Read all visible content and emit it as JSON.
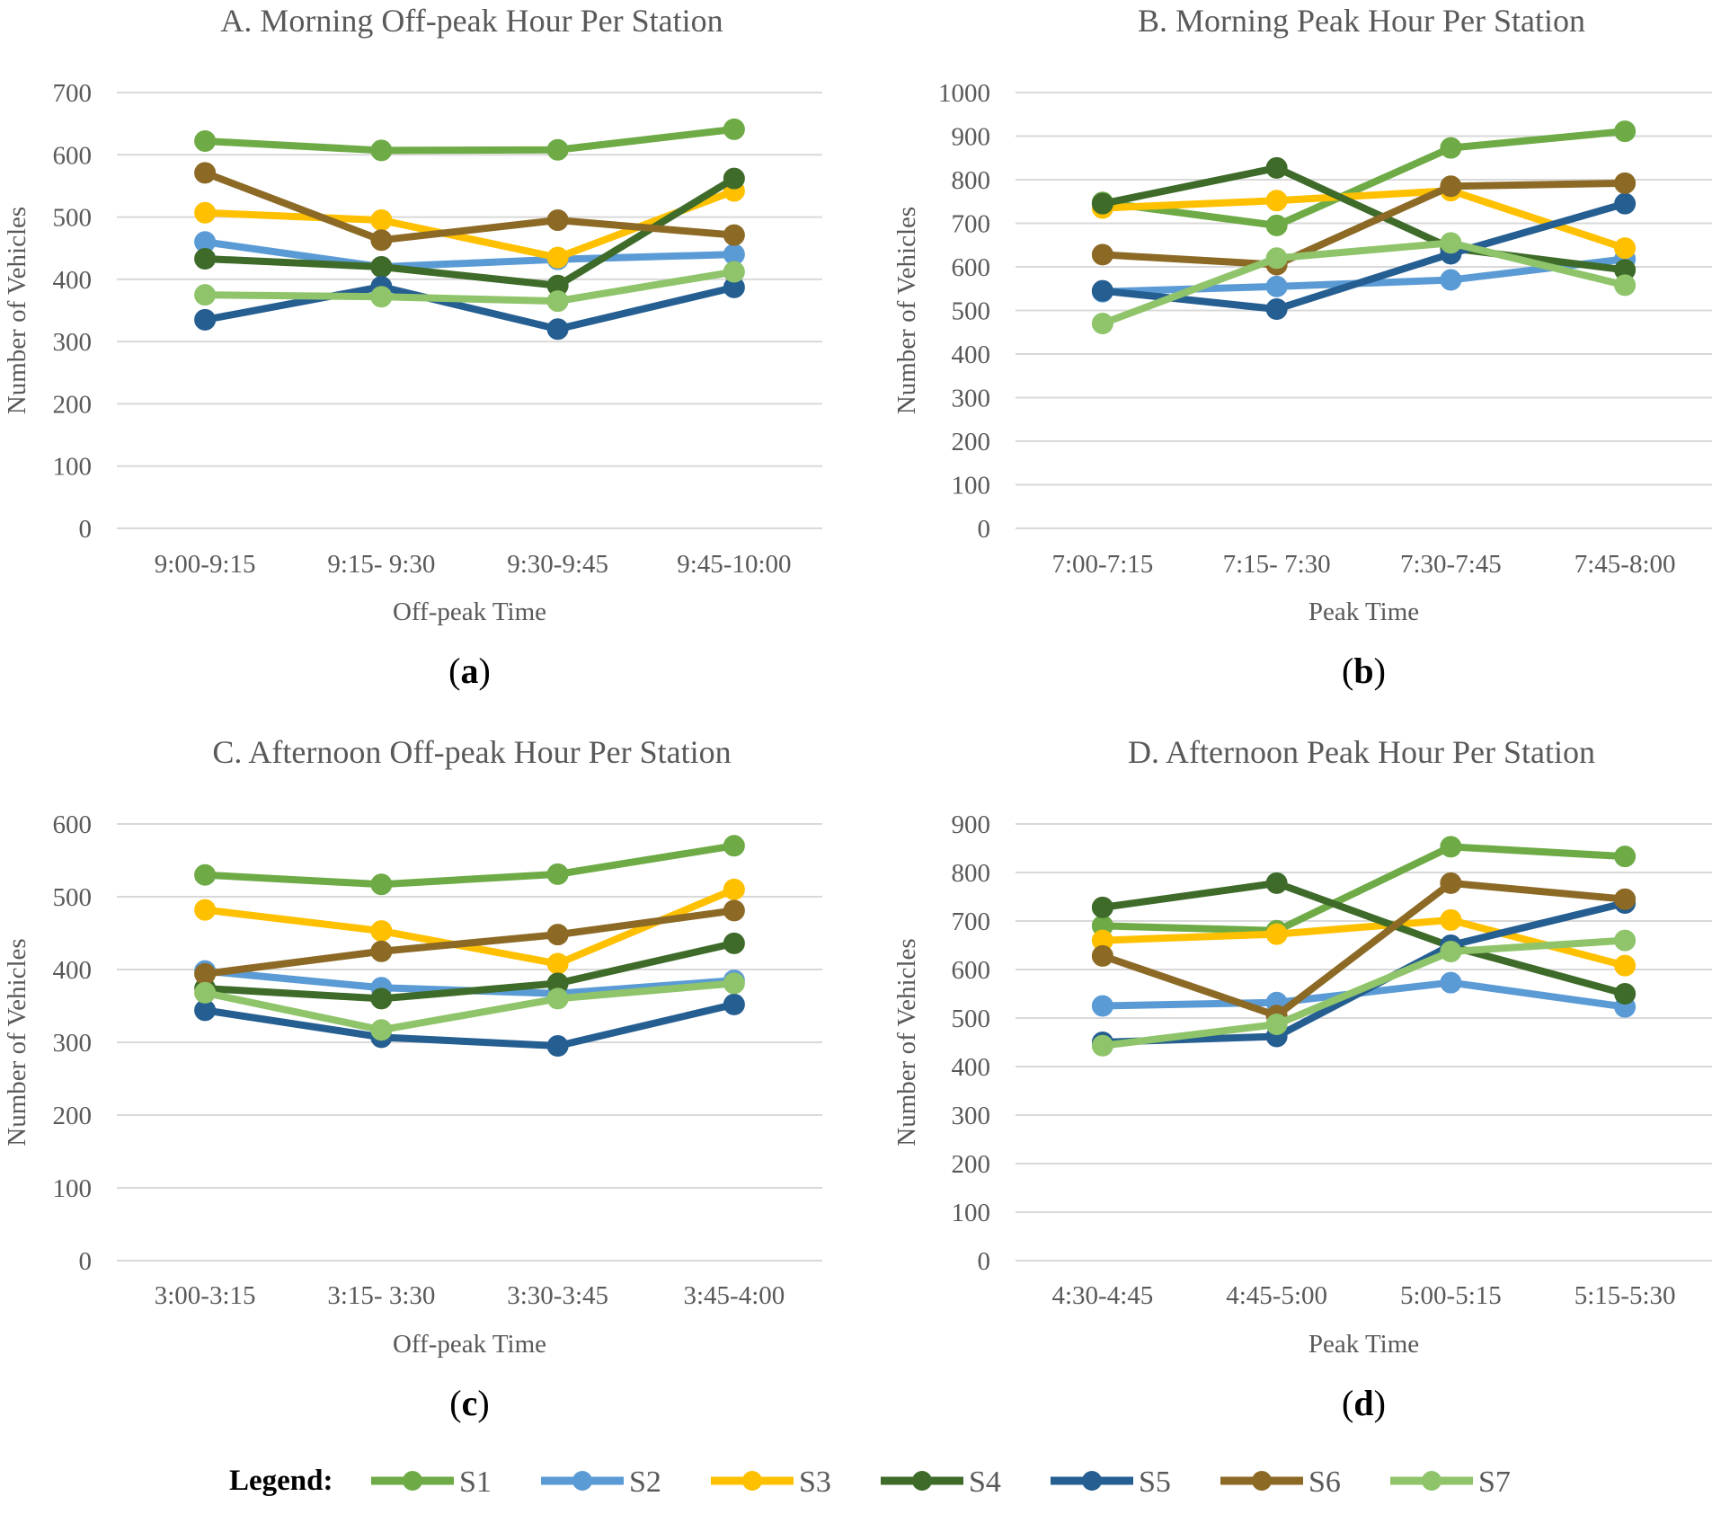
{
  "series_styles": [
    {
      "name": "S1",
      "color": "#6EAB46"
    },
    {
      "name": "S2",
      "color": "#5B9BD5"
    },
    {
      "name": "S3",
      "color": "#FFC000"
    },
    {
      "name": "S4",
      "color": "#3E6B2A"
    },
    {
      "name": "S5",
      "color": "#255E91"
    },
    {
      "name": "S6",
      "color": "#8C6A26"
    },
    {
      "name": "S7",
      "color": "#8FC46A"
    }
  ],
  "legend": {
    "title": "Legend:"
  },
  "chart_data": [
    {
      "type": "line",
      "title": "A. Morning Off-peak Hour Per Station",
      "caption_letter": "a",
      "xlabel": "Off-peak Time",
      "ylabel": "Number of Vehicles",
      "categories": [
        "9:00-9:15",
        "9:15- 9:30",
        "9:30-9:45",
        "9:45-10:00"
      ],
      "ylim": [
        0,
        700
      ],
      "yticks": [
        0,
        100,
        200,
        300,
        400,
        500,
        600,
        700
      ],
      "grid": true,
      "series": [
        {
          "name": "S1",
          "values": [
            622,
            607,
            608,
            641
          ]
        },
        {
          "name": "S2",
          "values": [
            460,
            420,
            432,
            440
          ]
        },
        {
          "name": "S3",
          "values": [
            507,
            495,
            435,
            542
          ]
        },
        {
          "name": "S4",
          "values": [
            433,
            420,
            390,
            562
          ]
        },
        {
          "name": "S5",
          "values": [
            335,
            388,
            320,
            387
          ]
        },
        {
          "name": "S6",
          "values": [
            571,
            463,
            495,
            471
          ]
        },
        {
          "name": "S7",
          "values": [
            375,
            372,
            365,
            412
          ]
        }
      ]
    },
    {
      "type": "line",
      "title": "B. Morning Peak Hour Per Station",
      "caption_letter": "b",
      "xlabel": "Peak Time",
      "ylabel": "Number of Vehicles",
      "categories": [
        "7:00-7:15",
        "7:15- 7:30",
        "7:30-7:45",
        "7:45-8:00"
      ],
      "ylim": [
        0,
        1000
      ],
      "yticks": [
        0,
        100,
        200,
        300,
        400,
        500,
        600,
        700,
        800,
        900,
        1000
      ],
      "grid": true,
      "series": [
        {
          "name": "S1",
          "values": [
            748,
            695,
            873,
            911
          ]
        },
        {
          "name": "S2",
          "values": [
            543,
            555,
            570,
            618
          ]
        },
        {
          "name": "S3",
          "values": [
            735,
            752,
            775,
            643
          ]
        },
        {
          "name": "S4",
          "values": [
            745,
            827,
            643,
            593
          ]
        },
        {
          "name": "S5",
          "values": [
            545,
            503,
            630,
            745
          ]
        },
        {
          "name": "S6",
          "values": [
            628,
            605,
            785,
            792
          ]
        },
        {
          "name": "S7",
          "values": [
            470,
            620,
            655,
            558
          ]
        }
      ]
    },
    {
      "type": "line",
      "title": "C. Afternoon Off-peak Hour Per Station",
      "caption_letter": "c",
      "xlabel": "Off-peak Time",
      "ylabel": "Number of Vehicles",
      "categories": [
        "3:00-3:15",
        "3:15- 3:30",
        "3:30-3:45",
        "3:45-4:00"
      ],
      "ylim": [
        0,
        600
      ],
      "yticks": [
        0,
        100,
        200,
        300,
        400,
        500,
        600
      ],
      "grid": true,
      "series": [
        {
          "name": "S1",
          "values": [
            530,
            517,
            531,
            570
          ]
        },
        {
          "name": "S2",
          "values": [
            398,
            375,
            367,
            385
          ]
        },
        {
          "name": "S3",
          "values": [
            482,
            453,
            408,
            510
          ]
        },
        {
          "name": "S4",
          "values": [
            374,
            360,
            381,
            436
          ]
        },
        {
          "name": "S5",
          "values": [
            344,
            307,
            295,
            352
          ]
        },
        {
          "name": "S6",
          "values": [
            394,
            425,
            448,
            481
          ]
        },
        {
          "name": "S7",
          "values": [
            368,
            317,
            360,
            381
          ]
        }
      ]
    },
    {
      "type": "line",
      "title": "D. Afternoon Peak Hour Per Station",
      "caption_letter": "d",
      "xlabel": "Peak Time",
      "ylabel": "Number of Vehicles",
      "categories": [
        "4:30-4:45",
        "4:45-5:00",
        "5:00-5:15",
        "5:15-5:30"
      ],
      "ylim": [
        0,
        900
      ],
      "yticks": [
        0,
        100,
        200,
        300,
        400,
        500,
        600,
        700,
        800,
        900
      ],
      "grid": true,
      "series": [
        {
          "name": "S1",
          "values": [
            690,
            680,
            853,
            833
          ]
        },
        {
          "name": "S2",
          "values": [
            525,
            532,
            573,
            523
          ]
        },
        {
          "name": "S3",
          "values": [
            660,
            673,
            702,
            608
          ]
        },
        {
          "name": "S4",
          "values": [
            728,
            778,
            648,
            550
          ]
        },
        {
          "name": "S5",
          "values": [
            450,
            462,
            650,
            737
          ]
        },
        {
          "name": "S6",
          "values": [
            628,
            505,
            778,
            745
          ]
        },
        {
          "name": "S7",
          "values": [
            443,
            487,
            637,
            660
          ]
        }
      ]
    }
  ]
}
